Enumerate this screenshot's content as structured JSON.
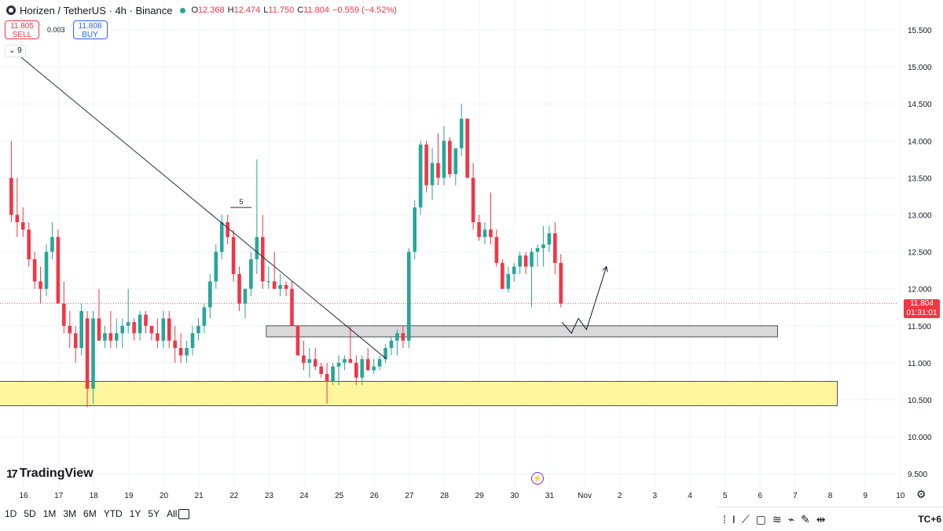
{
  "header": {
    "symbol": "Horizen",
    "separator": "/",
    "quote": "TetherUS",
    "interval": "4h",
    "exchange": "Binance",
    "open": "12.368",
    "high": "12.474",
    "low": "11.750",
    "close": "11.804",
    "change": "−0.559 (−4.52%)",
    "open_label": "O",
    "high_label": "H",
    "low_label": "L",
    "close_label": "C"
  },
  "trade": {
    "sell_price": "11.805",
    "sell_label": "SELL",
    "spread": "0.003",
    "buy_price": "11.808",
    "buy_label": "BUY"
  },
  "indicator_toggle": "9",
  "brand": "TradingView",
  "last_price": {
    "value": "11.804",
    "countdown": "01:31:01"
  },
  "periods": [
    "1D",
    "5D",
    "1M",
    "3M",
    "6M",
    "YTD",
    "1Y",
    "5Y",
    "All"
  ],
  "timezone": "TC+6",
  "colors": {
    "up": "#26a69a",
    "down": "#f23645",
    "support_zone": "#fff59d",
    "resistance_zone": "#d9d9d9",
    "grid": "#f0f3fa"
  },
  "chart_data": {
    "type": "candlestick",
    "title": "Horizen / TetherUS · 4h · Binance",
    "ylim": [
      9.4,
      15.75
    ],
    "y_ticks": [
      "15.500",
      "15.000",
      "14.500",
      "14.000",
      "13.500",
      "13.000",
      "12.500",
      "12.000",
      "11.500",
      "11.000",
      "10.500",
      "10.000",
      "9.500"
    ],
    "y_tick_values": [
      15.5,
      15.0,
      14.5,
      14.0,
      13.5,
      13.0,
      12.5,
      12.0,
      11.5,
      11.0,
      10.5,
      10.0,
      9.5
    ],
    "x_range": [
      15.65,
      10.98
    ],
    "x_ticks": [
      "16",
      "17",
      "18",
      "19",
      "20",
      "21",
      "22",
      "23",
      "24",
      "25",
      "26",
      "27",
      "28",
      "29",
      "30",
      "31",
      "Nov",
      "2",
      "3",
      "4",
      "5",
      "6",
      "7",
      "8",
      "9",
      "10"
    ],
    "x_tick_values": [
      16,
      17,
      18,
      19,
      20,
      21,
      22,
      23,
      24,
      25,
      26,
      27,
      28,
      29,
      30,
      31,
      32,
      33,
      34,
      35,
      36,
      37,
      38,
      39,
      40,
      41
    ],
    "candle_start_day": 15.65,
    "candle_step_days": 0.1667,
    "candles": [
      [
        13.5,
        14.0,
        12.9,
        13.0
      ],
      [
        13.0,
        13.5,
        12.7,
        12.9
      ],
      [
        12.9,
        13.1,
        12.7,
        12.8
      ],
      [
        12.8,
        12.9,
        12.3,
        12.4
      ],
      [
        12.4,
        12.5,
        12.0,
        12.1
      ],
      [
        12.1,
        12.3,
        11.8,
        12.0
      ],
      [
        12.0,
        12.6,
        11.9,
        12.5
      ],
      [
        12.5,
        12.9,
        12.4,
        12.7
      ],
      [
        12.7,
        12.8,
        11.8,
        11.8
      ],
      [
        11.8,
        12.1,
        11.4,
        11.5
      ],
      [
        11.5,
        11.7,
        11.2,
        11.4
      ],
      [
        11.4,
        11.5,
        11.0,
        11.2
      ],
      [
        11.2,
        11.8,
        11.1,
        11.7
      ],
      [
        11.6,
        11.7,
        10.4,
        10.65
      ],
      [
        10.65,
        11.7,
        10.45,
        11.6
      ],
      [
        11.6,
        12.0,
        11.3,
        11.3
      ],
      [
        11.3,
        11.5,
        11.2,
        11.4
      ],
      [
        11.4,
        11.7,
        11.2,
        11.3
      ],
      [
        11.3,
        11.6,
        11.2,
        11.4
      ],
      [
        11.4,
        11.6,
        11.2,
        11.5
      ],
      [
        11.5,
        12.0,
        11.4,
        11.55
      ],
      [
        11.55,
        11.6,
        11.3,
        11.4
      ],
      [
        11.4,
        11.7,
        11.3,
        11.65
      ],
      [
        11.65,
        11.7,
        11.4,
        11.5
      ],
      [
        11.5,
        11.5,
        11.3,
        11.4
      ],
      [
        11.4,
        11.6,
        11.2,
        11.3
      ],
      [
        11.3,
        11.7,
        11.2,
        11.6
      ],
      [
        11.6,
        11.7,
        11.2,
        11.3
      ],
      [
        11.3,
        11.5,
        11.0,
        11.2
      ],
      [
        11.2,
        11.4,
        11.0,
        11.1
      ],
      [
        11.1,
        11.3,
        11.0,
        11.2
      ],
      [
        11.2,
        11.5,
        11.1,
        11.4
      ],
      [
        11.4,
        11.6,
        11.3,
        11.5
      ],
      [
        11.5,
        11.8,
        11.4,
        11.75
      ],
      [
        11.75,
        12.2,
        11.6,
        12.1
      ],
      [
        12.1,
        12.6,
        12.0,
        12.5
      ],
      [
        12.5,
        13.0,
        12.4,
        12.9
      ],
      [
        12.9,
        13.0,
        12.6,
        12.7
      ],
      [
        12.7,
        12.8,
        12.1,
        12.2
      ],
      [
        12.2,
        12.3,
        11.7,
        11.8
      ],
      [
        11.8,
        12.0,
        11.6,
        12.0
      ],
      [
        12.0,
        12.5,
        11.9,
        12.4
      ],
      [
        12.4,
        13.75,
        12.2,
        12.7
      ],
      [
        12.7,
        13.0,
        12.0,
        12.1
      ],
      [
        12.1,
        12.3,
        12.0,
        12.1
      ],
      [
        12.1,
        12.5,
        12.0,
        12.0
      ],
      [
        12.0,
        12.2,
        11.9,
        12.05
      ],
      [
        12.05,
        12.1,
        11.9,
        12.0
      ],
      [
        12.0,
        12.1,
        11.5,
        11.5
      ],
      [
        11.5,
        11.5,
        11.1,
        11.1
      ],
      [
        11.1,
        11.3,
        10.9,
        11.0
      ],
      [
        11.0,
        11.2,
        10.8,
        11.05
      ],
      [
        11.05,
        11.2,
        10.9,
        10.95
      ],
      [
        10.95,
        11.0,
        10.8,
        10.85
      ],
      [
        10.85,
        11.0,
        10.45,
        10.75
      ],
      [
        10.75,
        11.0,
        10.7,
        10.95
      ],
      [
        10.95,
        11.1,
        10.7,
        11.0
      ],
      [
        11.0,
        11.1,
        10.9,
        11.05
      ],
      [
        11.05,
        11.5,
        11.0,
        11.0
      ],
      [
        11.0,
        11.1,
        10.7,
        10.8
      ],
      [
        10.8,
        11.1,
        10.7,
        11.05
      ],
      [
        11.05,
        11.2,
        10.9,
        10.9
      ],
      [
        10.9,
        11.05,
        10.85,
        10.95
      ],
      [
        10.95,
        11.1,
        10.9,
        11.05
      ],
      [
        11.05,
        11.25,
        11.0,
        11.2
      ],
      [
        11.2,
        11.35,
        11.1,
        11.3
      ],
      [
        11.3,
        11.45,
        11.1,
        11.4
      ],
      [
        11.4,
        11.5,
        11.2,
        11.3
      ],
      [
        11.3,
        12.55,
        11.2,
        12.5
      ],
      [
        12.5,
        13.2,
        12.4,
        13.1
      ],
      [
        13.1,
        14.0,
        13.0,
        13.95
      ],
      [
        13.95,
        14.0,
        13.3,
        13.4
      ],
      [
        13.4,
        13.9,
        13.2,
        13.7
      ],
      [
        13.7,
        14.1,
        13.4,
        13.5
      ],
      [
        13.5,
        14.2,
        13.4,
        14.0
      ],
      [
        14.0,
        14.05,
        13.5,
        13.55
      ],
      [
        13.55,
        13.9,
        13.4,
        13.9
      ],
      [
        13.9,
        14.5,
        13.8,
        14.3
      ],
      [
        14.3,
        14.3,
        13.5,
        13.5
      ],
      [
        13.5,
        13.7,
        12.8,
        12.9
      ],
      [
        12.9,
        13.0,
        12.65,
        12.7
      ],
      [
        12.7,
        12.9,
        12.6,
        12.8
      ],
      [
        12.8,
        13.3,
        12.6,
        12.7
      ],
      [
        12.7,
        12.8,
        12.3,
        12.35
      ],
      [
        12.35,
        12.4,
        12.0,
        12.0
      ],
      [
        12.0,
        12.3,
        11.95,
        12.2
      ],
      [
        12.2,
        12.35,
        12.1,
        12.3
      ],
      [
        12.3,
        12.5,
        12.2,
        12.45
      ],
      [
        12.45,
        12.5,
        12.2,
        12.3
      ],
      [
        12.3,
        12.55,
        11.75,
        12.5
      ],
      [
        12.5,
        12.6,
        12.3,
        12.55
      ],
      [
        12.55,
        12.85,
        12.3,
        12.6
      ],
      [
        12.6,
        12.85,
        12.5,
        12.75
      ],
      [
        12.75,
        12.9,
        12.2,
        12.35
      ],
      [
        12.35,
        12.47,
        11.75,
        11.8
      ]
    ],
    "annotations": {
      "support_zone": [
        10.42,
        10.75
      ],
      "resistance_zone": [
        11.35,
        11.5
      ],
      "trendline": {
        "from": [
          15.75,
          15.2
        ],
        "to": [
          26.35,
          11.05
        ]
      },
      "forecast_path": [
        [
          31.35,
          11.55
        ],
        [
          31.62,
          11.4
        ],
        [
          31.82,
          11.6
        ],
        [
          32.05,
          11.45
        ],
        [
          32.62,
          12.3
        ]
      ],
      "marker_label": "5",
      "marker_price": 13.1,
      "marker_days": [
        21.9,
        22.5
      ]
    }
  }
}
